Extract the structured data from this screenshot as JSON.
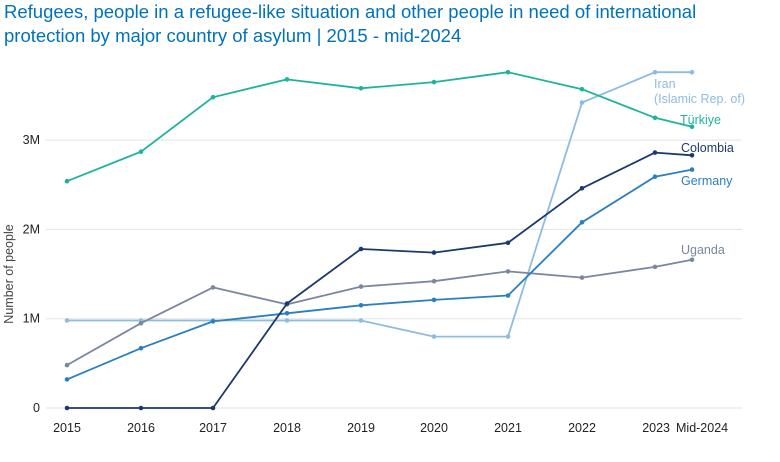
{
  "chart_data": {
    "type": "line",
    "title": "Refugees, people in a refugee-like situation and other people in need of international protection by major country of asylum | 2015 - mid-2024",
    "ylabel": "Number of people",
    "xlabel": "",
    "ylim": [
      0,
      4000000
    ],
    "yticks": [
      {
        "value": 0,
        "label": "0"
      },
      {
        "value": 1000000,
        "label": "1M"
      },
      {
        "value": 2000000,
        "label": "2M"
      },
      {
        "value": 3000000,
        "label": "3M"
      }
    ],
    "categories": [
      "2015",
      "2016",
      "2017",
      "2018",
      "2019",
      "2020",
      "2021",
      "2022",
      "2023",
      "Mid-2024"
    ],
    "grid": true,
    "series": [
      {
        "name": "Türkiye",
        "color": "#1fb39c",
        "label_lines": [
          "Türkiye"
        ],
        "values": [
          2540000,
          2870000,
          3480000,
          3680000,
          3580000,
          3650000,
          3760000,
          3570000,
          3250000,
          3150000
        ]
      },
      {
        "name": "Iran (Islamic Rep. of)",
        "color": "#8ebce0",
        "label_lines": [
          "Iran",
          "(Islamic Rep. of)"
        ],
        "values": [
          980000,
          980000,
          980000,
          980000,
          980000,
          800000,
          800000,
          3420000,
          3760000,
          3760000
        ]
      },
      {
        "name": "Colombia",
        "color": "#1b3a6b",
        "label_lines": [
          "Colombia"
        ],
        "values": [
          0,
          0,
          0,
          1170000,
          1780000,
          1740000,
          1850000,
          2460000,
          2860000,
          2830000
        ]
      },
      {
        "name": "Germany",
        "color": "#2a7fc0",
        "label_lines": [
          "Germany"
        ],
        "values": [
          320000,
          670000,
          970000,
          1060000,
          1150000,
          1210000,
          1260000,
          2080000,
          2590000,
          2670000
        ]
      },
      {
        "name": "Uganda",
        "color": "#7a879f",
        "label_lines": [
          "Uganda"
        ],
        "values": [
          480000,
          950000,
          1350000,
          1160000,
          1360000,
          1420000,
          1530000,
          1460000,
          1580000,
          1660000
        ]
      }
    ]
  }
}
